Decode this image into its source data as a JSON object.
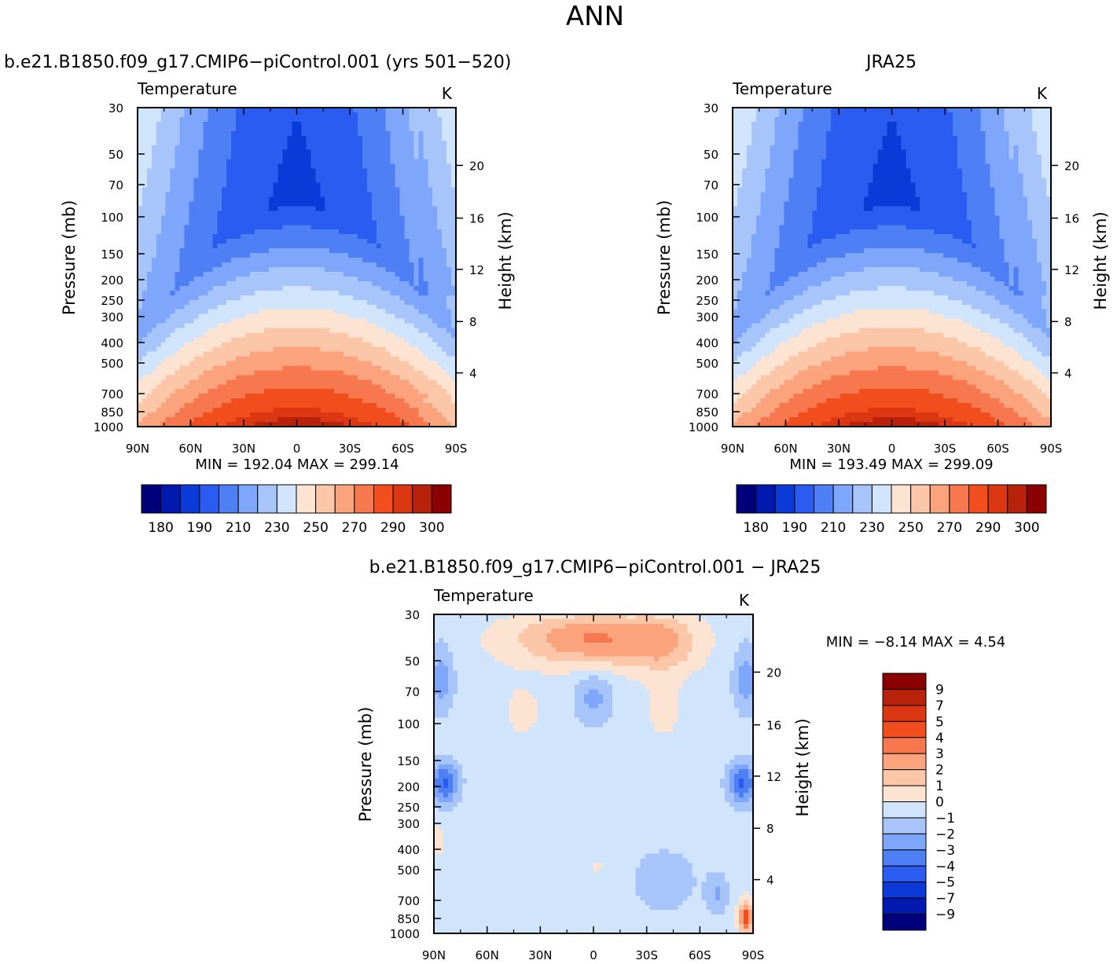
{
  "figure": {
    "title": "ANN"
  },
  "chart_data": [
    {
      "type": "heatmap",
      "title": "b.e21.B1850.f09_g17.CMIP6-piControl.001 (yrs 501-520)",
      "variable": "Temperature",
      "units": "K",
      "ylabel": "Pressure  (mb)",
      "y2label": "Height  (km)",
      "x_ticks": [
        "90N",
        "60N",
        "30N",
        "0",
        "30S",
        "60S",
        "90S"
      ],
      "y_ticks": [
        30,
        50,
        70,
        100,
        150,
        200,
        250,
        300,
        400,
        500,
        700,
        850,
        1000
      ],
      "y2_ticks": [
        20,
        16,
        12,
        8,
        4
      ],
      "ylim": [
        1000,
        30
      ],
      "stats": "MIN =  192.04   MAX =  299.14",
      "min": 192.04,
      "max": 299.14,
      "colorbar": {
        "labels": [
          "180",
          "190",
          "210",
          "230",
          "250",
          "270",
          "290",
          "300"
        ],
        "colors": [
          "#00007a",
          "#0019ae",
          "#0a3bd8",
          "#2a5cf2",
          "#4f7ff5",
          "#7ea6fa",
          "#a8c5fb",
          "#d0e4fc",
          "#fde4d2",
          "#fcc6a9",
          "#fba37c",
          "#f7784f",
          "#f24e1d",
          "#db3713",
          "#b9220a",
          "#8b0000"
        ]
      }
    },
    {
      "type": "heatmap",
      "title": "JRA25",
      "variable": "Temperature",
      "units": "K",
      "ylabel": "Pressure  (mb)",
      "y2label": "Height  (km)",
      "x_ticks": [
        "90N",
        "60N",
        "30N",
        "0",
        "30S",
        "60S",
        "90S"
      ],
      "y_ticks": [
        30,
        50,
        70,
        100,
        150,
        200,
        250,
        300,
        400,
        500,
        700,
        850,
        1000
      ],
      "y2_ticks": [
        20,
        16,
        12,
        8,
        4
      ],
      "ylim": [
        1000,
        30
      ],
      "stats": "MIN =  193.49   MAX =  299.09",
      "min": 193.49,
      "max": 299.09,
      "colorbar": {
        "labels": [
          "180",
          "190",
          "210",
          "230",
          "250",
          "270",
          "290",
          "300"
        ],
        "colors": [
          "#00007a",
          "#0019ae",
          "#0a3bd8",
          "#2a5cf2",
          "#4f7ff5",
          "#7ea6fa",
          "#a8c5fb",
          "#d0e4fc",
          "#fde4d2",
          "#fcc6a9",
          "#fba37c",
          "#f7784f",
          "#f24e1d",
          "#db3713",
          "#b9220a",
          "#8b0000"
        ]
      }
    },
    {
      "type": "heatmap",
      "title": "b.e21.B1850.f09_g17.CMIP6-piControl.001  -  JRA25",
      "variable": "Temperature",
      "units": "K",
      "ylabel": "Pressure  (mb)",
      "y2label": "Height  (km)",
      "x_ticks": [
        "90N",
        "60N",
        "30N",
        "0",
        "30S",
        "60S",
        "90S"
      ],
      "y_ticks": [
        30,
        50,
        70,
        100,
        150,
        200,
        250,
        300,
        400,
        500,
        700,
        850,
        1000
      ],
      "y2_ticks": [
        20,
        16,
        12,
        8,
        4
      ],
      "ylim": [
        1000,
        30
      ],
      "stats": "MIN =    -8.14    MAX =     4.54",
      "min": -8.14,
      "max": 4.54,
      "colorbar": {
        "labels": [
          "9",
          "7",
          "5",
          "4",
          "3",
          "2",
          "1",
          "0",
          "-1",
          "-2",
          "-3",
          "-4",
          "-5",
          "-7",
          "-9"
        ],
        "colors": [
          "#8b0000",
          "#b9220a",
          "#db3713",
          "#f24e1d",
          "#f7784f",
          "#fba37c",
          "#fcc6a9",
          "#fde4d2",
          "#d0e4fc",
          "#a8c5fb",
          "#7ea6fa",
          "#4f7ff5",
          "#2a5cf2",
          "#0a3bd8",
          "#0019ae",
          "#00007a"
        ]
      }
    }
  ]
}
